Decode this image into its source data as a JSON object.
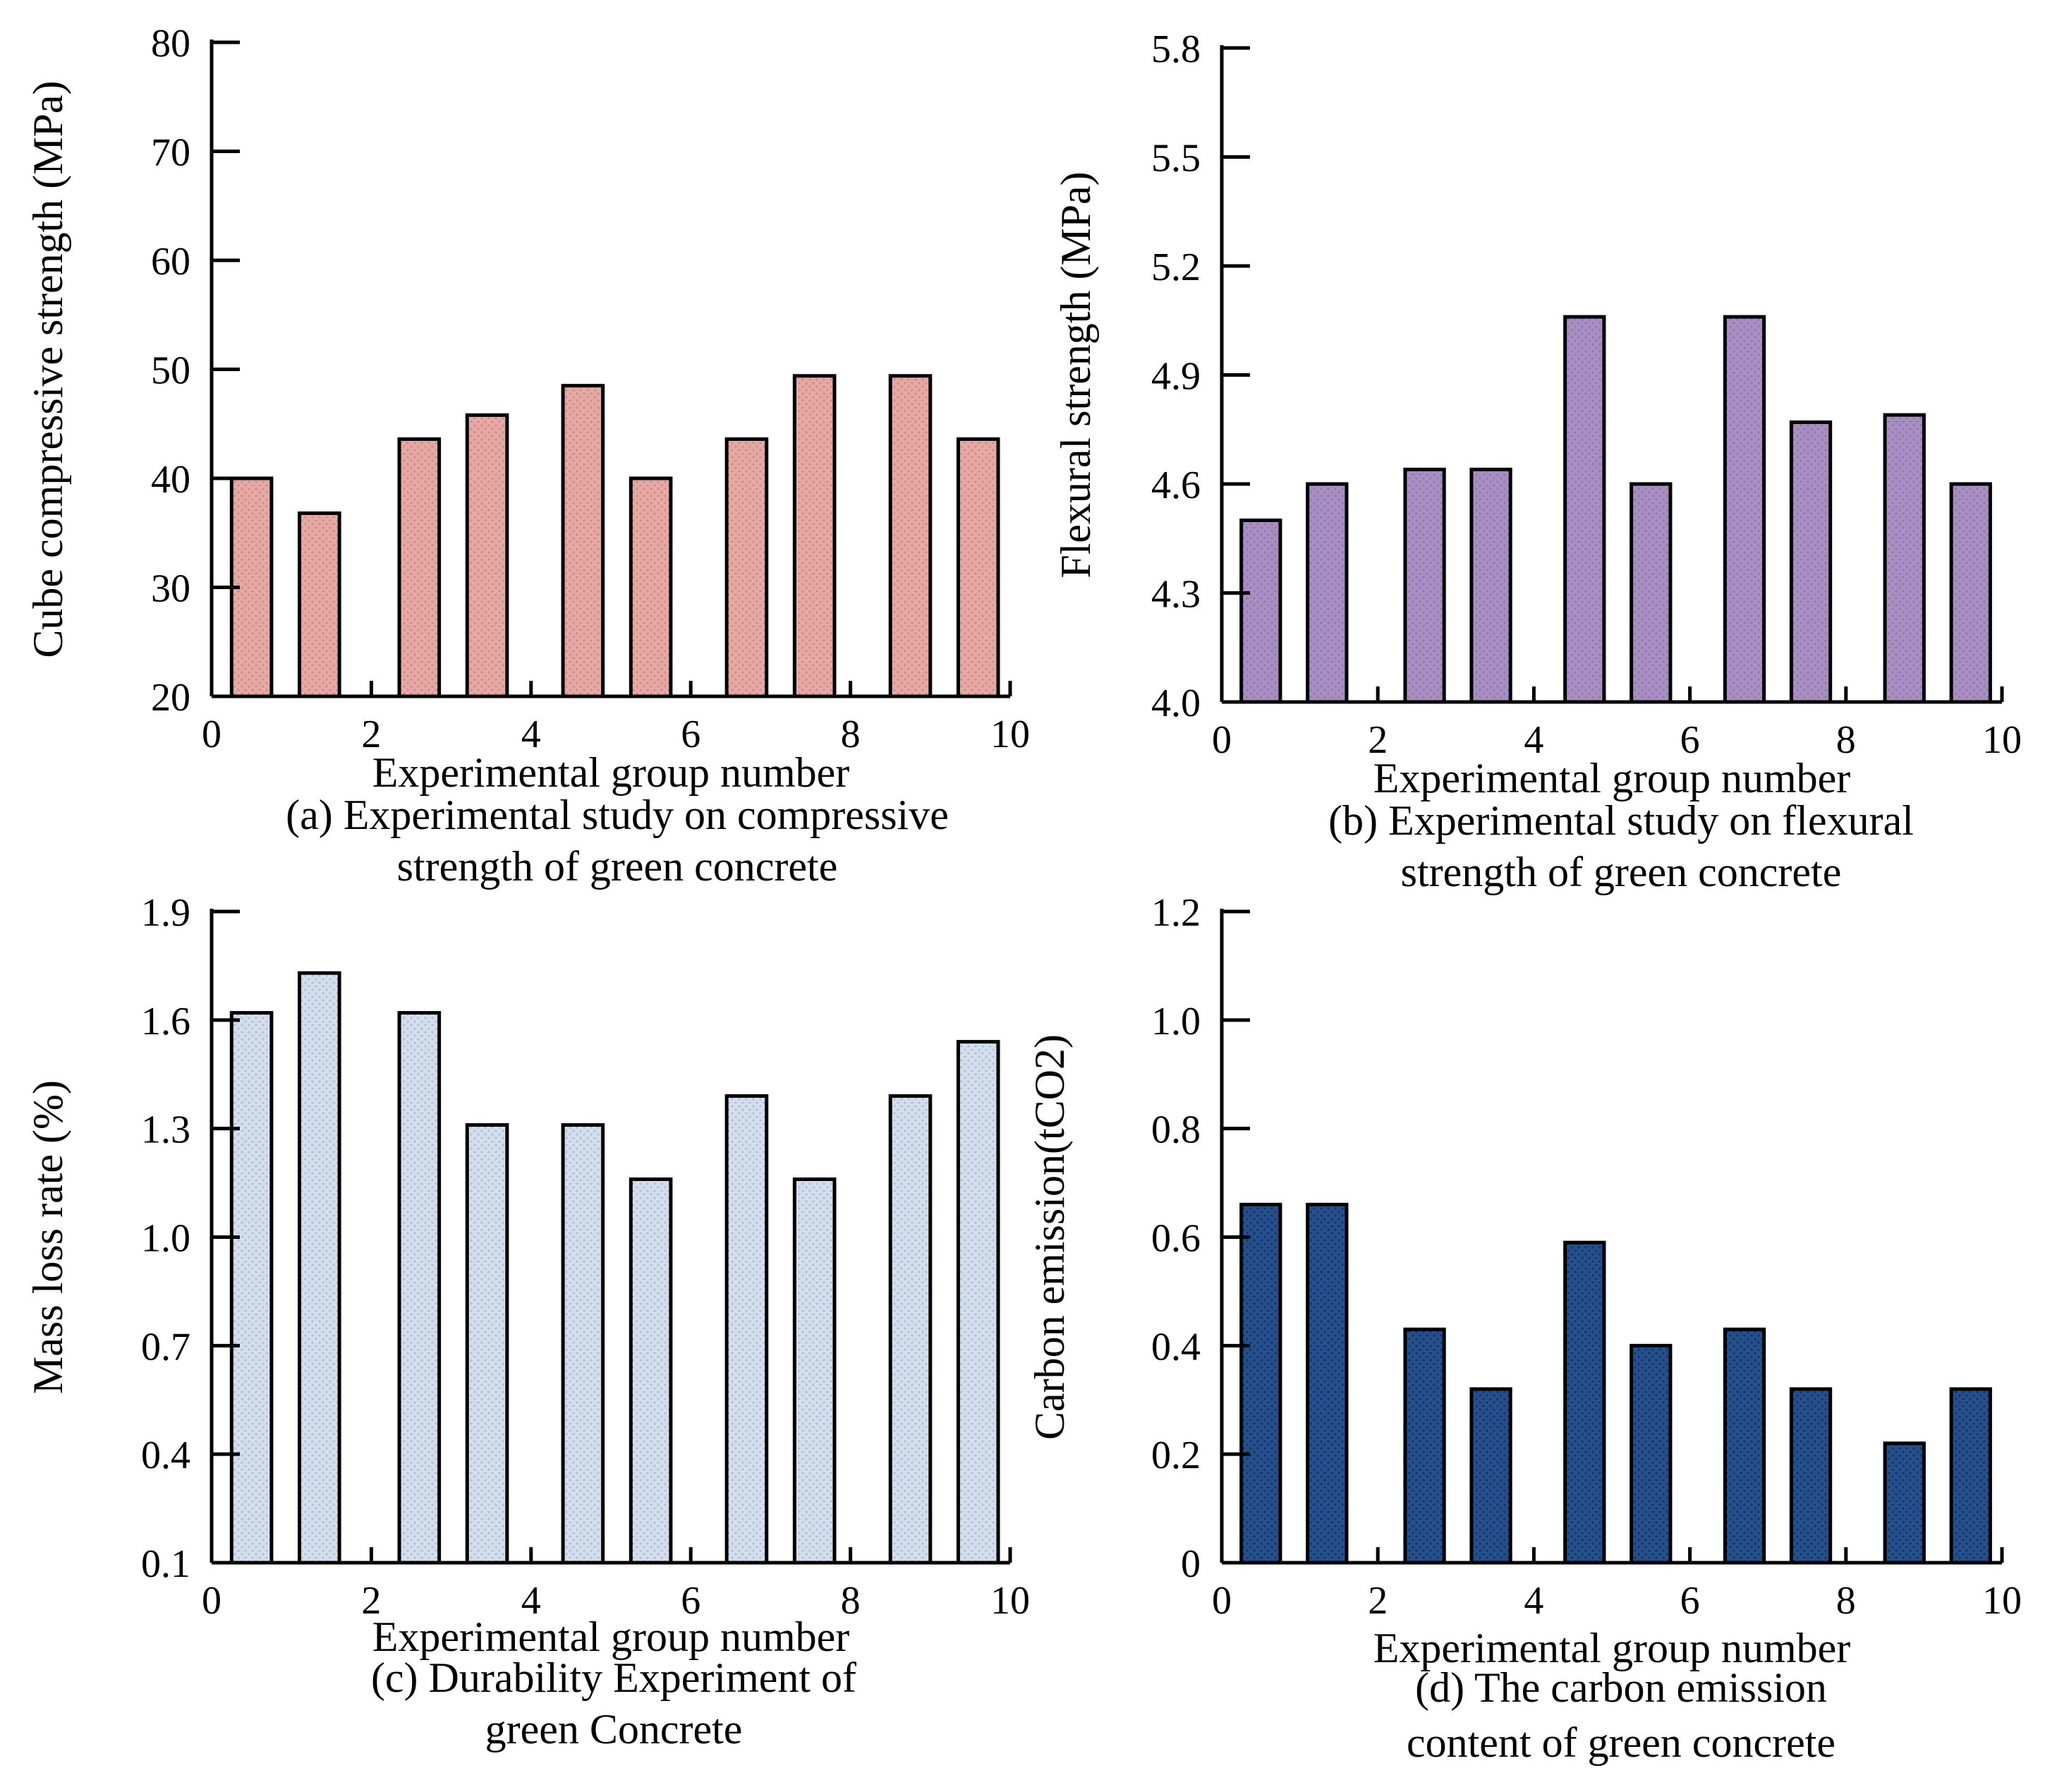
{
  "chart_data": [
    {
      "id": "a",
      "type": "bar",
      "x": [
        0.5,
        1.35,
        2.6,
        3.45,
        4.65,
        5.5,
        6.7,
        7.55,
        8.75,
        9.6
      ],
      "values": [
        40,
        36.8,
        43.6,
        45.8,
        48.5,
        40,
        43.6,
        49.4,
        49.4,
        43.6
      ],
      "xlim": [
        0,
        10
      ],
      "ylim": [
        20,
        80
      ],
      "xticks": [
        0,
        2,
        4,
        6,
        8,
        10
      ],
      "yticks": [
        "20",
        "30",
        "40",
        "50",
        "60",
        "70",
        "80"
      ],
      "xlabel": "Experimental group number",
      "ylabel": "Cube compressive strength (MPa)",
      "caption": [
        "(a) Experimental study on compressive",
        "strength of green concrete"
      ],
      "bar_color": "#e8a8a4"
    },
    {
      "id": "b",
      "type": "bar",
      "x": [
        0.5,
        1.35,
        2.6,
        3.45,
        4.65,
        5.5,
        6.7,
        7.55,
        8.75,
        9.6
      ],
      "values": [
        4.5,
        4.6,
        4.64,
        4.64,
        5.06,
        4.6,
        5.06,
        4.77,
        4.79,
        4.6
      ],
      "xlim": [
        0,
        10
      ],
      "ylim": [
        4.0,
        5.8
      ],
      "xticks": [
        0,
        2,
        4,
        6,
        8,
        10
      ],
      "yticks": [
        "4.0",
        "4.3",
        "4.6",
        "4.9",
        "5.2",
        "5.5",
        "5.8"
      ],
      "xlabel": "Experimental group number",
      "ylabel": "Flexural strength (MPa)",
      "caption": [
        "(b) Experimental study on flexural",
        "strength of green concrete"
      ],
      "bar_color": "#a98ec4"
    },
    {
      "id": "c",
      "type": "bar",
      "x": [
        0.5,
        1.35,
        2.6,
        3.45,
        4.65,
        5.5,
        6.7,
        7.55,
        8.75,
        9.6
      ],
      "values": [
        1.62,
        1.73,
        1.62,
        1.31,
        1.31,
        1.16,
        1.39,
        1.16,
        1.39,
        1.54
      ],
      "xlim": [
        0,
        10
      ],
      "ylim": [
        0.1,
        1.9
      ],
      "xticks": [
        0,
        2,
        4,
        6,
        8,
        10
      ],
      "yticks": [
        "0.1",
        "0.4",
        "0.7",
        "1.0",
        "1.3",
        "1.6",
        "1.9"
      ],
      "xlabel": "Experimental group number",
      "ylabel": "Mass loss rate (%)",
      "caption": [
        "(c) Durability Experiment of",
        "green Concrete"
      ],
      "bar_color": "#d3dfee"
    },
    {
      "id": "d",
      "type": "bar",
      "x": [
        0.5,
        1.35,
        2.6,
        3.45,
        4.65,
        5.5,
        6.7,
        7.55,
        8.75,
        9.6
      ],
      "values": [
        0.66,
        0.66,
        0.43,
        0.32,
        0.59,
        0.4,
        0.43,
        0.32,
        0.22,
        0.32
      ],
      "xlim": [
        0,
        10
      ],
      "ylim": [
        0,
        1.2
      ],
      "xticks": [
        0,
        2,
        4,
        6,
        8,
        10
      ],
      "yticks": [
        "0",
        "0.2",
        "0.4",
        "0.6",
        "0.8",
        "1.0",
        "1.2"
      ],
      "xlabel": "Experimental group number",
      "ylabel": "Carbon emission(tCO2)",
      "caption": [
        "(d) The carbon emission",
        "content of green concrete"
      ],
      "bar_color": "#24508e"
    }
  ]
}
